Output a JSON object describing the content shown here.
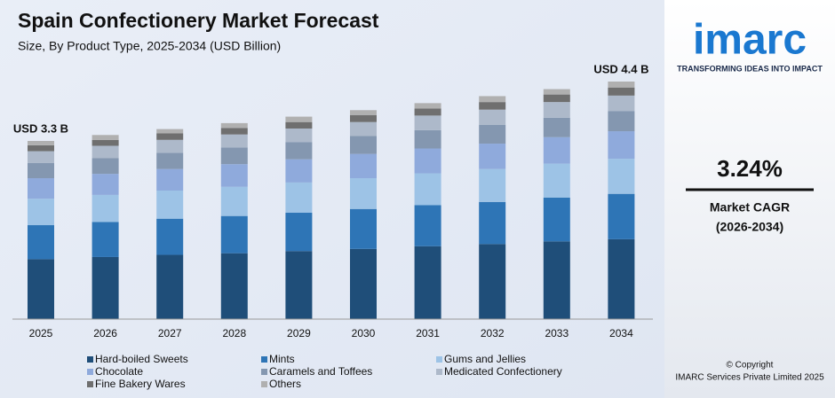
{
  "chart_data": {
    "type": "stacked_bar",
    "title": "Spain Confectionery Market Forecast",
    "subtitle": "Size, By Product Type, 2025-2034 (USD Billion)",
    "categories": [
      "2025",
      "2026",
      "2027",
      "2028",
      "2029",
      "2030",
      "2031",
      "2032",
      "2033",
      "2034"
    ],
    "series": [
      {
        "name": "Hard-boiled Sweets",
        "color": "#1f4e79",
        "values": [
          1.11,
          1.15,
          1.19,
          1.22,
          1.26,
          1.3,
          1.35,
          1.39,
          1.44,
          1.48
        ]
      },
      {
        "name": "Mints",
        "color": "#2e75b6",
        "values": [
          0.63,
          0.65,
          0.67,
          0.69,
          0.71,
          0.74,
          0.76,
          0.78,
          0.81,
          0.84
        ]
      },
      {
        "name": "Gums and Jellies",
        "color": "#9dc3e6",
        "values": [
          0.49,
          0.5,
          0.52,
          0.54,
          0.56,
          0.57,
          0.59,
          0.61,
          0.63,
          0.65
        ]
      },
      {
        "name": "Chocolate",
        "color": "#8faadc",
        "values": [
          0.38,
          0.39,
          0.4,
          0.42,
          0.43,
          0.45,
          0.46,
          0.47,
          0.49,
          0.51
        ]
      },
      {
        "name": "Caramels and Toffees",
        "color": "#8497b0",
        "values": [
          0.28,
          0.29,
          0.3,
          0.31,
          0.32,
          0.33,
          0.34,
          0.35,
          0.36,
          0.37
        ]
      },
      {
        "name": "Medicated Confectionery",
        "color": "#adb9ca",
        "values": [
          0.22,
          0.23,
          0.24,
          0.24,
          0.25,
          0.26,
          0.27,
          0.28,
          0.29,
          0.29
        ]
      },
      {
        "name": "Fine Bakery Wares",
        "color": "#6f6f6f",
        "values": [
          0.11,
          0.11,
          0.12,
          0.12,
          0.12,
          0.13,
          0.13,
          0.14,
          0.14,
          0.15
        ]
      },
      {
        "name": "Others",
        "color": "#b0b0b0",
        "values": [
          0.08,
          0.09,
          0.08,
          0.09,
          0.1,
          0.09,
          0.1,
          0.11,
          0.1,
          0.11
        ]
      }
    ],
    "annotations": [
      "USD 3.3 B",
      "USD 4.4 B"
    ]
  },
  "sidebar": {
    "logo": "imarc",
    "tagline": "TRANSFORMING IDEAS INTO IMPACT",
    "cagr": "3.24%",
    "cagr_label": "Market CAGR",
    "cagr_period": "(2026-2034)",
    "copyright": "© Copyright",
    "company": "IMARC Services Private Limited 2025"
  }
}
